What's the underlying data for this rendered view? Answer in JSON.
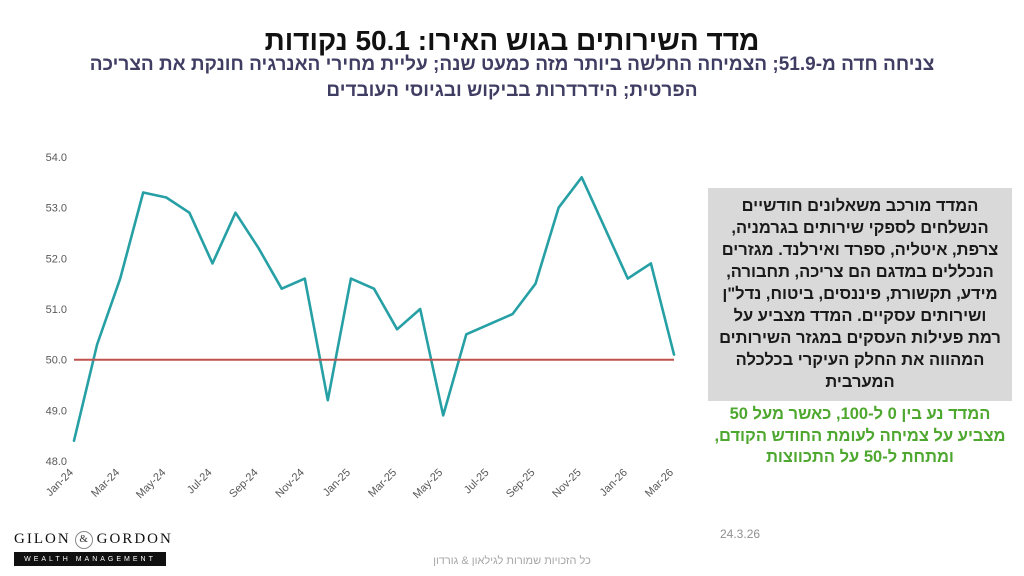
{
  "title": "מדד השירותים בגוש האירו: 50.1 נקודות",
  "subtitle": "צניחה חדה מ-51.9; הצמיחה החלשה ביותר מזה כמעט שנה; עליית מחירי האנרגיה חונקת את הצריכה הפרטית; הידרדרות בביקוש ובגיוסי העובדים",
  "chart_data": {
    "type": "line",
    "title": "",
    "xlabel": "",
    "ylabel": "",
    "x": [
      "Jan-24",
      "Feb-24",
      "Mar-24",
      "Apr-24",
      "May-24",
      "Jun-24",
      "Jul-24",
      "Aug-24",
      "Sep-24",
      "Oct-24",
      "Nov-24",
      "Dec-24",
      "Jan-25",
      "Feb-25",
      "Mar-25",
      "Apr-25",
      "May-25",
      "Jun-25",
      "Jul-25",
      "Aug-25",
      "Sep-25",
      "Oct-25",
      "Nov-25",
      "Dec-25",
      "Jan-26",
      "Feb-26",
      "Mar-26"
    ],
    "values": [
      48.4,
      50.3,
      51.6,
      53.3,
      53.2,
      52.9,
      51.9,
      52.9,
      52.2,
      51.4,
      51.6,
      49.2,
      51.6,
      51.4,
      50.6,
      51.0,
      48.9,
      50.5,
      50.7,
      50.9,
      51.5,
      53.0,
      53.6,
      52.6,
      51.6,
      51.9,
      50.1
    ],
    "tick_labels": [
      "Jan-24",
      "Mar-24",
      "May-24",
      "Jul-24",
      "Sep-24",
      "Nov-24",
      "Jan-25",
      "Mar-25",
      "May-25",
      "Jul-25",
      "Sep-25",
      "Nov-25",
      "Jan-26",
      "Mar-26"
    ],
    "ytick_labels": [
      "48.0",
      "49.0",
      "50.0",
      "51.0",
      "52.0",
      "53.0",
      "54.0"
    ],
    "ylim": [
      48.0,
      54.0
    ],
    "reference_line": 50.0,
    "line_color": "#26a0a5",
    "reference_color": "#c0504d",
    "grid": false,
    "legend": "none"
  },
  "infobox": {
    "main_text": "המדד מורכב משאלונים חודשיים הנשלחים לספקי שירותים בגרמניה, צרפת, איטליה, ספרד ואירלנד. מגזרים הנכללים במדגם הם צריכה, תחבורה, מידע, תקשורת, פיננסים, ביטוח, נדל\"ן ושירותים עסקיים. המדד מצביע על רמת פעילות העסקים במגזר השירותים המהווה את החלק העיקרי בכלכלה המערבית",
    "green_text": "המדד נע בין 0 ל-100, כאשר מעל 50 מצביע על צמיחה לעומת החודש הקודם, ומתחת ל-50 על התכווצות"
  },
  "footer": {
    "copyright": "כל הזכויות שמורות לגילאון & גורדון",
    "date": "24.3.26"
  },
  "logo": {
    "name1": "GILON",
    "amp": "&",
    "name2": "GORDON",
    "tagline": "WEALTH MANAGEMENT"
  }
}
